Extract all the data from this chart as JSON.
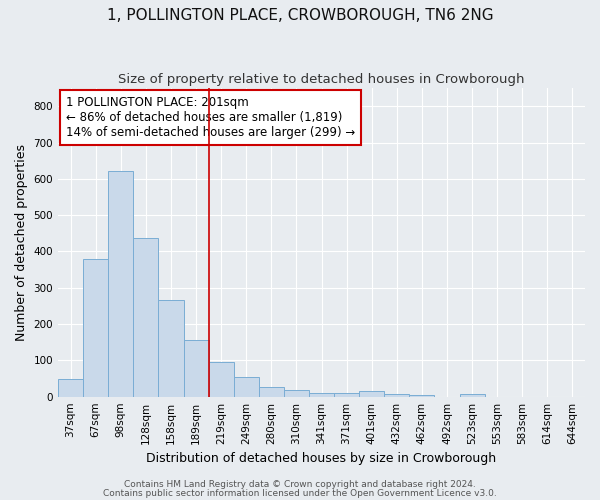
{
  "title": "1, POLLINGTON PLACE, CROWBOROUGH, TN6 2NG",
  "subtitle": "Size of property relative to detached houses in Crowborough",
  "xlabel": "Distribution of detached houses by size in Crowborough",
  "ylabel": "Number of detached properties",
  "categories": [
    "37sqm",
    "67sqm",
    "98sqm",
    "128sqm",
    "158sqm",
    "189sqm",
    "219sqm",
    "249sqm",
    "280sqm",
    "310sqm",
    "341sqm",
    "371sqm",
    "401sqm",
    "432sqm",
    "462sqm",
    "492sqm",
    "523sqm",
    "553sqm",
    "583sqm",
    "614sqm",
    "644sqm"
  ],
  "values": [
    48,
    380,
    622,
    437,
    267,
    155,
    95,
    53,
    28,
    18,
    11,
    10,
    15,
    8,
    5,
    0,
    7,
    0,
    0,
    0,
    0
  ],
  "bar_color": "#c9d9ea",
  "bar_edge_color": "#7aadd4",
  "reference_line_x": 5.5,
  "reference_line_label": "1 POLLINGTON PLACE: 201sqm",
  "annotation_line1": "← 86% of detached houses are smaller (1,819)",
  "annotation_line2": "14% of semi-detached houses are larger (299) →",
  "annotation_box_color": "white",
  "annotation_box_edge_color": "#cc0000",
  "vline_color": "#cc0000",
  "ylim": [
    0,
    850
  ],
  "yticks": [
    0,
    100,
    200,
    300,
    400,
    500,
    600,
    700,
    800
  ],
  "footnote1": "Contains HM Land Registry data © Crown copyright and database right 2024.",
  "footnote2": "Contains public sector information licensed under the Open Government Licence v3.0.",
  "title_fontsize": 11,
  "subtitle_fontsize": 9.5,
  "axis_label_fontsize": 9,
  "tick_fontsize": 7.5,
  "annotation_fontsize": 8.5,
  "footnote_fontsize": 6.5,
  "background_color": "#e8ecf0",
  "plot_bg_color": "#e8ecf0",
  "grid_color": "white"
}
